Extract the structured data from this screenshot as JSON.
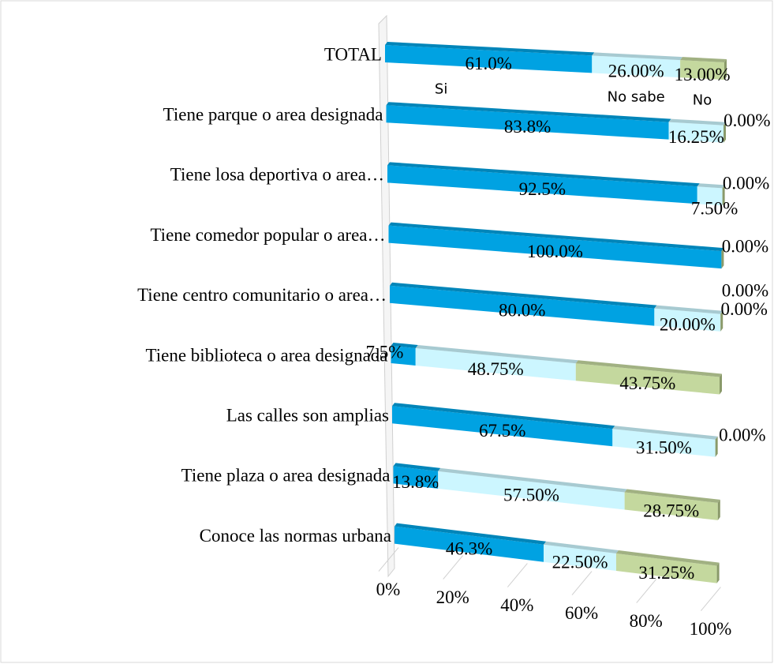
{
  "chart_data": {
    "type": "bar3d_stacked_horizontal",
    "categories": [
      "TOTAL",
      "Tiene parque o area designada",
      "Tiene losa deportiva o area…",
      "Tiene comedor popular o area…",
      "Tiene centro comunitario o area…",
      "Tiene biblioteca o area designada",
      "Las calles son amplias",
      "Tiene plaza o area designada",
      "Conoce las normas urbana"
    ],
    "series": [
      {
        "name": "Si",
        "color": "#00a2e2",
        "values": [
          61.0,
          83.8,
          92.5,
          100.0,
          80.0,
          7.5,
          67.5,
          13.8,
          46.3
        ],
        "value_labels": [
          "61.0%",
          "83.8%",
          "92.5%",
          "100.0%",
          "80.0%",
          "7.5%",
          "67.5%",
          "13.8%",
          "46.3%"
        ]
      },
      {
        "name": "No sabe",
        "color": "#ccf6ff",
        "values": [
          26.0,
          16.25,
          7.5,
          0.0,
          20.0,
          48.75,
          31.5,
          57.5,
          22.5
        ],
        "value_labels": [
          "26.00%",
          "16.25%",
          "7.50%",
          "0.00%",
          "20.00%",
          "48.75%",
          "31.50%",
          "57.50%",
          "22.50%"
        ]
      },
      {
        "name": "No",
        "color": "#c4d89e",
        "values": [
          13.0,
          0.0,
          0.0,
          0.0,
          0.0,
          43.75,
          0.0,
          28.75,
          31.25
        ],
        "value_labels": [
          "13.00%",
          "0.00%",
          "0.00%",
          "0.00%",
          "0.00%",
          "43.75%",
          "0.00%",
          "28.75%",
          "31.25%"
        ]
      }
    ],
    "xlim": [
      0,
      100
    ],
    "xticks": [
      {
        "value": 0,
        "label": "0%"
      },
      {
        "value": 20,
        "label": "20%"
      },
      {
        "value": 40,
        "label": "40%"
      },
      {
        "value": 60,
        "label": "60%"
      },
      {
        "value": 80,
        "label": "80%"
      },
      {
        "value": 100,
        "label": "100%"
      }
    ]
  }
}
